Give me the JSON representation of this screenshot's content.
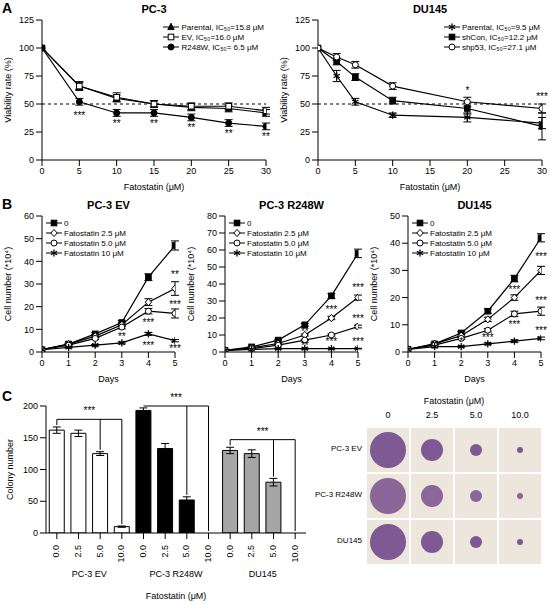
{
  "chart_data": [
    {
      "panel": "A",
      "type": "line",
      "title": "PC-3",
      "x": [
        0,
        5,
        10,
        15,
        20,
        25,
        30
      ],
      "xlim": [
        0,
        30
      ],
      "xticks": [
        0,
        5,
        10,
        15,
        20,
        25,
        30
      ],
      "ylim": [
        0,
        125
      ],
      "yticks": [
        0,
        25,
        50,
        75,
        100,
        125
      ],
      "x_label": "Fatostatin (μM)",
      "y_label": "Viability rate (%)",
      "legend": "upper right",
      "grid": false,
      "hline": 50,
      "series": [
        {
          "name": "Parental, IC₅₀=15.8 μM",
          "color": "#000000",
          "marker": "triangle",
          "values": [
            100,
            66,
            55,
            50,
            47,
            46,
            42
          ],
          "errors": [
            0,
            3,
            3,
            3,
            3,
            3,
            3
          ]
        },
        {
          "name": "EV, IC₅₀=16.0 μM",
          "color": "#000000",
          "marker": "open square",
          "values": [
            100,
            66,
            56,
            50,
            48,
            48,
            44
          ],
          "errors": [
            0,
            4,
            4,
            3,
            3,
            3,
            3
          ]
        },
        {
          "name": "R248W, IC₅₀= 6.5 μM",
          "color": "#000000",
          "marker": "circle",
          "values": [
            100,
            52,
            42,
            42,
            38,
            33,
            30
          ],
          "errors": [
            0,
            3,
            3,
            3,
            3,
            3,
            3
          ]
        }
      ],
      "annotations": [
        {
          "x": 5,
          "y": 40,
          "text": "***"
        },
        {
          "x": 10,
          "y": 33,
          "text": "**"
        },
        {
          "x": 15,
          "y": 33,
          "text": "**"
        },
        {
          "x": 20,
          "y": 29,
          "text": "**"
        },
        {
          "x": 25,
          "y": 24,
          "text": "**"
        },
        {
          "x": 30,
          "y": 21,
          "text": "**"
        }
      ]
    },
    {
      "type": "line",
      "title": "DU145",
      "x": [
        0,
        2.5,
        5,
        10,
        20,
        30
      ],
      "xlim": [
        0,
        30
      ],
      "xticks": [
        0,
        5,
        10,
        15,
        20,
        25,
        30
      ],
      "ylim": [
        0,
        125
      ],
      "yticks": [
        0,
        25,
        50,
        75,
        100,
        125
      ],
      "x_label": "Fatostatin (μM)",
      "y_label": "Viability rate (%)",
      "legend": "upper right",
      "grid": false,
      "hline": 50,
      "series": [
        {
          "name": "Parental, IC₅₀=9.5 μM",
          "color": "#000000",
          "marker": "star",
          "values": [
            100,
            75,
            52,
            40,
            38,
            33
          ],
          "errors": [
            0,
            5,
            3,
            2,
            4,
            5
          ]
        },
        {
          "name": "shCon, IC₅₀=12.2 μM",
          "color": "#000000",
          "marker": "square",
          "values": [
            100,
            88,
            74,
            53,
            46,
            30
          ],
          "errors": [
            0,
            3,
            3,
            3,
            5,
            12
          ]
        },
        {
          "name": "shp53, IC₅₀=27.1 μM",
          "color": "#000000",
          "marker": "open circle",
          "values": [
            100,
            92,
            85,
            66,
            52,
            46
          ],
          "errors": [
            0,
            3,
            3,
            3,
            4,
            4
          ]
        }
      ],
      "annotations": [
        {
          "x": 20,
          "y": 62,
          "text": "*"
        },
        {
          "x": 30,
          "y": 57,
          "text": "***"
        }
      ]
    },
    {
      "panel": "B",
      "type": "line",
      "title": "PC-3 EV",
      "x": [
        0,
        1,
        2,
        3,
        4,
        5
      ],
      "xlim": [
        0,
        5
      ],
      "xticks": [
        0,
        1,
        2,
        3,
        4,
        5
      ],
      "ylim": [
        0,
        60
      ],
      "yticks": [
        0,
        10,
        20,
        30,
        40,
        50,
        60
      ],
      "x_label": "Days",
      "y_label": "Cell number (*10⁴)",
      "legend": "upper left",
      "grid": false,
      "series": [
        {
          "name": "0",
          "color": "#000000",
          "marker": "square",
          "values": [
            1,
            3.5,
            8,
            13,
            33,
            47
          ],
          "errors": [
            0,
            0.3,
            0.5,
            0.8,
            1.5,
            2
          ]
        },
        {
          "name": "Fatostatin 2.5 μM",
          "color": "#000000",
          "marker": "open diamond",
          "values": [
            1,
            3.5,
            7,
            12,
            22,
            28
          ],
          "errors": [
            0,
            0.3,
            0.5,
            0.8,
            1.5,
            3
          ]
        },
        {
          "name": "Fatostatin 5.0 μM",
          "color": "#000000",
          "marker": "open circle",
          "values": [
            1,
            3,
            6,
            11,
            18,
            17
          ],
          "errors": [
            0,
            0.3,
            0.5,
            0.8,
            1.2,
            2
          ]
        },
        {
          "name": "Fatostatin 10 μM",
          "color": "#000000",
          "marker": "star",
          "values": [
            1,
            2,
            3,
            4,
            8,
            5
          ],
          "errors": [
            0,
            0.2,
            0.3,
            0.4,
            0.6,
            0.5
          ]
        }
      ],
      "annotations": [
        {
          "x": 2,
          "y": 1.5,
          "text": "*"
        },
        {
          "x": 3,
          "y": 7,
          "text": "**"
        },
        {
          "x": 4,
          "y": 13,
          "text": "***"
        },
        {
          "x": 4,
          "y": 3,
          "text": "***"
        },
        {
          "x": 5,
          "y": 34,
          "text": "**"
        },
        {
          "x": 5,
          "y": 21,
          "text": "***"
        },
        {
          "x": 5,
          "y": 1.5,
          "text": "***"
        }
      ]
    },
    {
      "type": "line",
      "title": "PC-3 R248W",
      "x": [
        0,
        1,
        2,
        3,
        4,
        5
      ],
      "xlim": [
        0,
        5
      ],
      "xticks": [
        0,
        1,
        2,
        3,
        4,
        5
      ],
      "ylim": [
        0,
        80
      ],
      "yticks": [
        0,
        10,
        20,
        30,
        40,
        50,
        60,
        70,
        80
      ],
      "x_label": "Days",
      "y_label": "Cell number (*10⁴)",
      "legend": "upper left",
      "grid": false,
      "series": [
        {
          "name": "0",
          "color": "#000000",
          "marker": "square",
          "values": [
            1,
            3,
            7,
            16,
            33,
            58
          ],
          "errors": [
            0,
            0.3,
            0.5,
            0.8,
            1.5,
            2.5
          ]
        },
        {
          "name": "Fatostatin 2.5 μM",
          "color": "#000000",
          "marker": "open diamond",
          "values": [
            1,
            2.5,
            5,
            10,
            20,
            32
          ],
          "errors": [
            0,
            0.3,
            0.4,
            0.6,
            1,
            1.5
          ]
        },
        {
          "name": "Fatostatin 5.0 μM",
          "color": "#000000",
          "marker": "open circle",
          "values": [
            1,
            2,
            4,
            7,
            10,
            15
          ],
          "errors": [
            0,
            0.2,
            0.3,
            0.4,
            0.6,
            0.8
          ]
        },
        {
          "name": "Fatostatin 10 μM",
          "color": "#000000",
          "marker": "star",
          "values": [
            1,
            1.5,
            2,
            2,
            2,
            2
          ],
          "errors": [
            0,
            0.1,
            0.2,
            0.2,
            0.2,
            0.2
          ]
        }
      ],
      "annotations": [
        {
          "x": 3,
          "y": 12,
          "text": "**"
        },
        {
          "x": 3,
          "y": 4,
          "text": "**"
        },
        {
          "x": 4,
          "y": 25,
          "text": "***"
        },
        {
          "x": 4,
          "y": 6,
          "text": "***"
        },
        {
          "x": 5,
          "y": 38,
          "text": "***"
        },
        {
          "x": 5,
          "y": 20,
          "text": "***"
        },
        {
          "x": 5,
          "y": 6,
          "text": "***"
        }
      ]
    },
    {
      "type": "line",
      "title": "DU145",
      "x": [
        0,
        1,
        2,
        3,
        4,
        5
      ],
      "xlim": [
        0,
        5
      ],
      "xticks": [
        0,
        1,
        2,
        3,
        4,
        5
      ],
      "ylim": [
        0,
        50
      ],
      "yticks": [
        0,
        10,
        20,
        30,
        40,
        50
      ],
      "x_label": "Days",
      "y_label": "Cell number (*10⁴)",
      "legend": "upper left",
      "grid": false,
      "series": [
        {
          "name": "0",
          "color": "#000000",
          "marker": "square",
          "values": [
            1,
            3,
            7,
            15,
            27,
            42
          ],
          "errors": [
            0,
            0.3,
            0.5,
            0.8,
            1.2,
            1.5
          ]
        },
        {
          "name": "Fatostatin 2.5 μM",
          "color": "#000000",
          "marker": "open diamond",
          "values": [
            1,
            3,
            6,
            12,
            20,
            30
          ],
          "errors": [
            0,
            0.3,
            0.5,
            0.8,
            1,
            1.5
          ]
        },
        {
          "name": "Fatostatin 5.0 μM",
          "color": "#000000",
          "marker": "open circle",
          "values": [
            1,
            2.5,
            5,
            8,
            14,
            15
          ],
          "errors": [
            0,
            0.3,
            0.4,
            0.6,
            1,
            1.5
          ]
        },
        {
          "name": "Fatostatin 10 μM",
          "color": "#000000",
          "marker": "star",
          "values": [
            1,
            2,
            2,
            3,
            4,
            5
          ],
          "errors": [
            0,
            0.2,
            0.2,
            0.3,
            0.4,
            0.5
          ]
        }
      ],
      "annotations": [
        {
          "x": 2,
          "y": 4,
          "text": "*"
        },
        {
          "x": 3,
          "y": 5.5,
          "text": "***"
        },
        {
          "x": 4,
          "y": 23,
          "text": "***"
        },
        {
          "x": 4,
          "y": 10,
          "text": "***"
        },
        {
          "x": 5,
          "y": 35,
          "text": "***"
        },
        {
          "x": 5,
          "y": 19,
          "text": "***"
        },
        {
          "x": 5,
          "y": 8,
          "text": "***"
        }
      ]
    },
    {
      "panel": "C",
      "type": "bar",
      "categories": [
        "0.0",
        "2.5",
        "5.0",
        "10.0",
        "0.0",
        "2.5",
        "5.0",
        "10.0",
        "0.0",
        "2.5",
        "5.0",
        "10.0"
      ],
      "values": [
        162,
        157,
        125,
        10,
        193,
        133,
        52,
        0,
        130,
        125,
        80,
        0
      ],
      "errors": [
        5,
        5,
        3,
        1,
        4,
        8,
        5,
        0,
        5,
        6,
        6,
        0
      ],
      "colors": [
        "#ffffff",
        "#ffffff",
        "#ffffff",
        "#ffffff",
        "#000000",
        "#000000",
        "#000000",
        "#000000",
        "#a6a6a6",
        "#a6a6a6",
        "#a6a6a6",
        "#a6a6a6"
      ],
      "groups": [
        {
          "name": "PC-3 EV",
          "from": 0,
          "to": 3
        },
        {
          "name": "PC-3 R248W",
          "from": 4,
          "to": 7
        },
        {
          "name": "DU145",
          "from": 8,
          "to": 11
        }
      ],
      "brackets": [
        {
          "from": 0,
          "to": [
            2,
            3
          ],
          "text": "***"
        },
        {
          "from": 4,
          "to": [
            6,
            7
          ],
          "text": "***"
        },
        {
          "from": 8,
          "to": [
            10,
            11
          ],
          "text": "***"
        }
      ],
      "ylim": [
        0,
        200
      ],
      "yticks": [
        0,
        50,
        100,
        150,
        200
      ],
      "x_label": "Fatostatin (μM)",
      "y_label": "Colony number",
      "grid": false
    },
    {
      "type": "image",
      "title": "Fatostatin (μM)",
      "columns": [
        "0",
        "2.5",
        "5.0",
        "10.0"
      ],
      "rows": [
        "PC-3 EV",
        "PC-3 R248W",
        "DU145"
      ]
    }
  ]
}
